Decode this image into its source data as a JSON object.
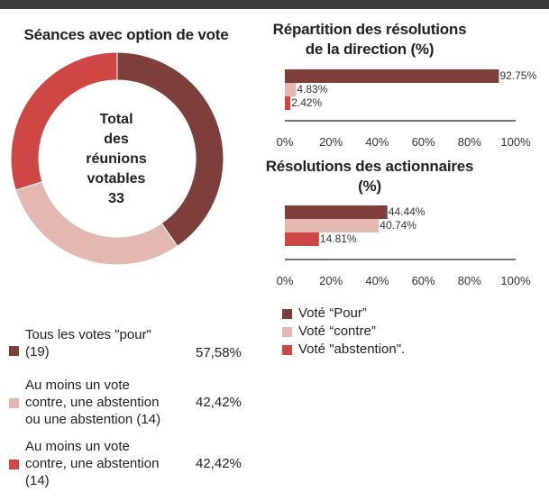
{
  "colors": {
    "pour": "#7e3f3b",
    "contre": "#e2b8b1",
    "abstention": "#cf4745",
    "topbar": "#3a3a3a"
  },
  "chart_data": [
    {
      "type": "pie",
      "title": "Séances avec option de vote",
      "center_label": [
        "Total",
        "des",
        "réunions",
        "votables",
        "33"
      ],
      "slices": [
        {
          "label": "Tous les votes \"pour\" (19)",
          "value": 57.58,
          "display": "57,58%",
          "color": "#7e3f3b"
        },
        {
          "label": "Au moins un vote contre, une abstention ou une abstention (14)",
          "value": 42.42,
          "display": "42,42%",
          "color": "#e2b8b1"
        },
        {
          "label": "Au moins un vote contre, une abstention (14)",
          "value": 42.42,
          "display": "42,42%",
          "color": "#cf4745"
        }
      ],
      "legend": [
        {
          "lines": [
            "Tous les votes \"pour\"",
            "(19)"
          ],
          "pct": "57,58%",
          "color": "#7e3f3b"
        },
        {
          "lines": [
            "Au moins un vote",
            "contre, une abstention",
            "ou une abstention (14)"
          ],
          "pct": "42,42%",
          "color": "#e2b8b1"
        },
        {
          "lines": [
            "Au moins un vote",
            "contre, une abstention",
            "(14)"
          ],
          "pct": "42,42%",
          "color": "#cf4745"
        }
      ]
    },
    {
      "type": "bar",
      "orientation": "horizontal",
      "title": [
        "Répartition des résolutions",
        "de la direction (%)"
      ],
      "categories": [
        "Voté “Pour”",
        "Voté “contre”",
        "Voté \"abstention\"."
      ],
      "values": [
        92.75,
        4.83,
        2.42
      ],
      "labels": [
        "92.75%",
        "4.83%",
        "2.42%"
      ],
      "xlim": [
        0,
        100
      ],
      "ticks": [
        "0%",
        "20%",
        "40%",
        "60%",
        "80%",
        "100%"
      ]
    },
    {
      "type": "bar",
      "orientation": "horizontal",
      "title": [
        "Résolutions des actionnaires",
        "(%)"
      ],
      "categories": [
        "Voté “Pour”",
        "Voté “contre”",
        "Voté \"abstention\"."
      ],
      "values": [
        44.44,
        40.74,
        14.81
      ],
      "labels": [
        "44.44%",
        "40.74%",
        "14.81%"
      ],
      "xlim": [
        0,
        100
      ],
      "ticks": [
        "0%",
        "20%",
        "40%",
        "60%",
        "80%",
        "100%"
      ]
    }
  ],
  "legend_right": [
    {
      "label": "Voté “Pour”",
      "color": "#7e3f3b"
    },
    {
      "label": "Voté “contre”",
      "color": "#e2b8b1"
    },
    {
      "label": "Voté \"abstention\".",
      "color": "#cf4745"
    }
  ]
}
